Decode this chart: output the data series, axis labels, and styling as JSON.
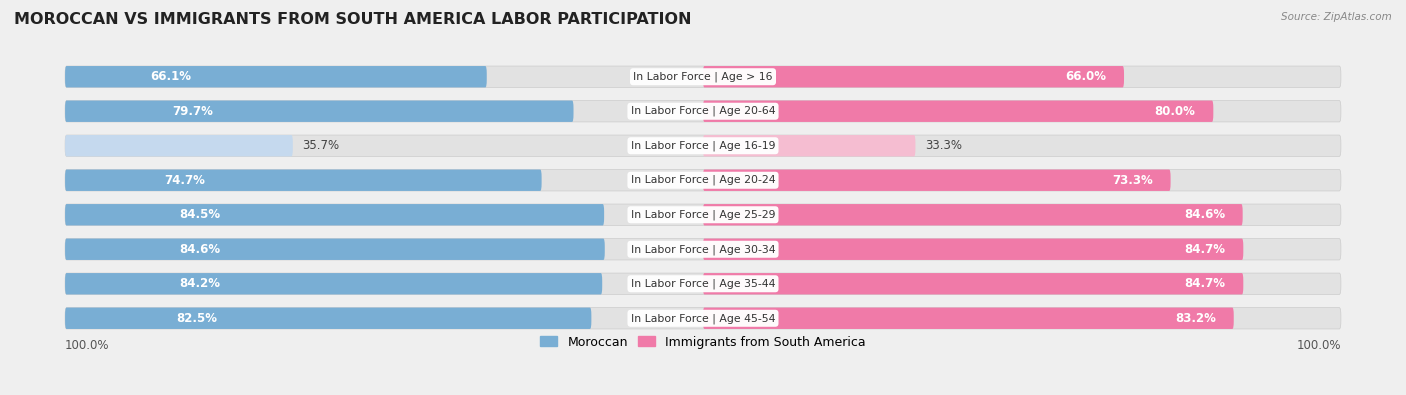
{
  "title": "MOROCCAN VS IMMIGRANTS FROM SOUTH AMERICA LABOR PARTICIPATION",
  "source": "Source: ZipAtlas.com",
  "categories": [
    "In Labor Force | Age > 16",
    "In Labor Force | Age 20-64",
    "In Labor Force | Age 16-19",
    "In Labor Force | Age 20-24",
    "In Labor Force | Age 25-29",
    "In Labor Force | Age 30-34",
    "In Labor Force | Age 35-44",
    "In Labor Force | Age 45-54"
  ],
  "moroccan_values": [
    66.1,
    79.7,
    35.7,
    74.7,
    84.5,
    84.6,
    84.2,
    82.5
  ],
  "immigrant_values": [
    66.0,
    80.0,
    33.3,
    73.3,
    84.6,
    84.7,
    84.7,
    83.2
  ],
  "moroccan_color_full": "#79aed4",
  "moroccan_color_light": "#c5d9ee",
  "immigrant_color_full": "#f07aa8",
  "immigrant_color_light": "#f5bdd1",
  "bar_height": 0.62,
  "label_fontsize": 8.5,
  "category_fontsize": 7.8,
  "title_fontsize": 11.5,
  "background_color": "#efefef",
  "row_bg_color": "#e2e2e2",
  "max_value": 100.0,
  "legend_moroccan": "Moroccan",
  "legend_immigrant": "Immigrants from South America",
  "low_value_threshold": 50
}
